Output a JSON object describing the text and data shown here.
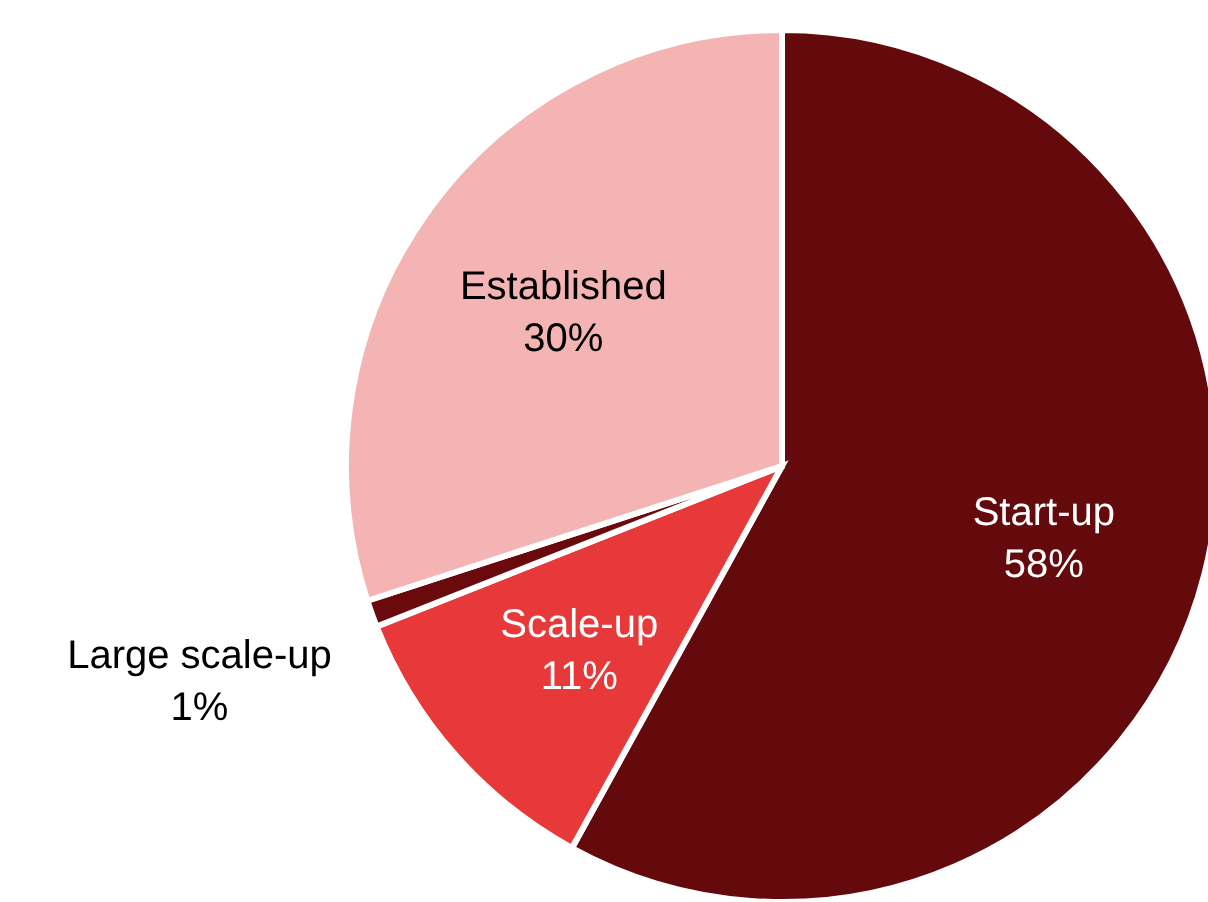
{
  "chart_data": {
    "type": "pie",
    "categories": [
      "Start-up",
      "Scale-up",
      "Large scale-up",
      "Established"
    ],
    "values": [
      58,
      11,
      1,
      30
    ],
    "value_labels": [
      "58%",
      "11%",
      "1%",
      "30%"
    ],
    "colors": [
      "#650a0c",
      "#e8393a",
      "#6b0a0c",
      "#f4b4b4"
    ]
  }
}
